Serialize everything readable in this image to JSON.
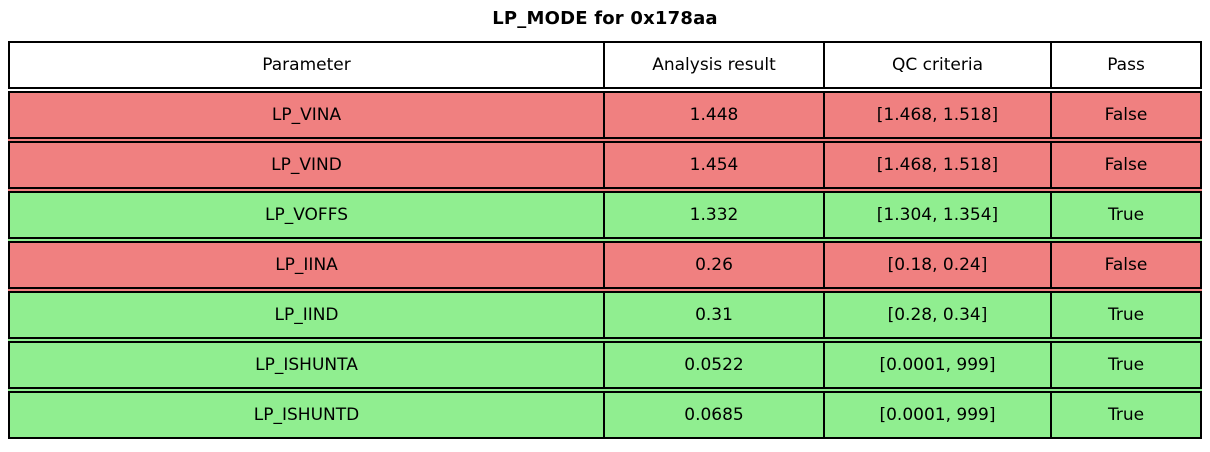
{
  "chart_data": {
    "type": "table",
    "title": "LP_MODE for 0x178aa",
    "columns": [
      "Parameter",
      "Analysis result",
      "QC criteria",
      "Pass"
    ],
    "rows": [
      {
        "parameter": "LP_VINA",
        "analysis_result": "1.448",
        "qc_criteria": "[1.468, 1.518]",
        "pass": "False",
        "status": "fail"
      },
      {
        "parameter": "LP_VIND",
        "analysis_result": "1.454",
        "qc_criteria": "[1.468, 1.518]",
        "pass": "False",
        "status": "fail"
      },
      {
        "parameter": "LP_VOFFS",
        "analysis_result": "1.332",
        "qc_criteria": "[1.304, 1.354]",
        "pass": "True",
        "status": "pass"
      },
      {
        "parameter": "LP_IINA",
        "analysis_result": "0.26",
        "qc_criteria": "[0.18, 0.24]",
        "pass": "False",
        "status": "fail"
      },
      {
        "parameter": "LP_IIND",
        "analysis_result": "0.31",
        "qc_criteria": "[0.28, 0.34]",
        "pass": "True",
        "status": "pass"
      },
      {
        "parameter": "LP_ISHUNTA",
        "analysis_result": "0.0522",
        "qc_criteria": "[0.0001, 999]",
        "pass": "True",
        "status": "pass"
      },
      {
        "parameter": "LP_ISHUNTD",
        "analysis_result": "0.0685",
        "qc_criteria": "[0.0001, 999]",
        "pass": "True",
        "status": "pass"
      }
    ],
    "colors": {
      "fail_row": "#f08080",
      "pass_row": "#90ee90",
      "header_row": "#ffffff",
      "border": "#000000",
      "text": "#000000"
    },
    "legend_position": "none",
    "grid": "cell-borders"
  }
}
